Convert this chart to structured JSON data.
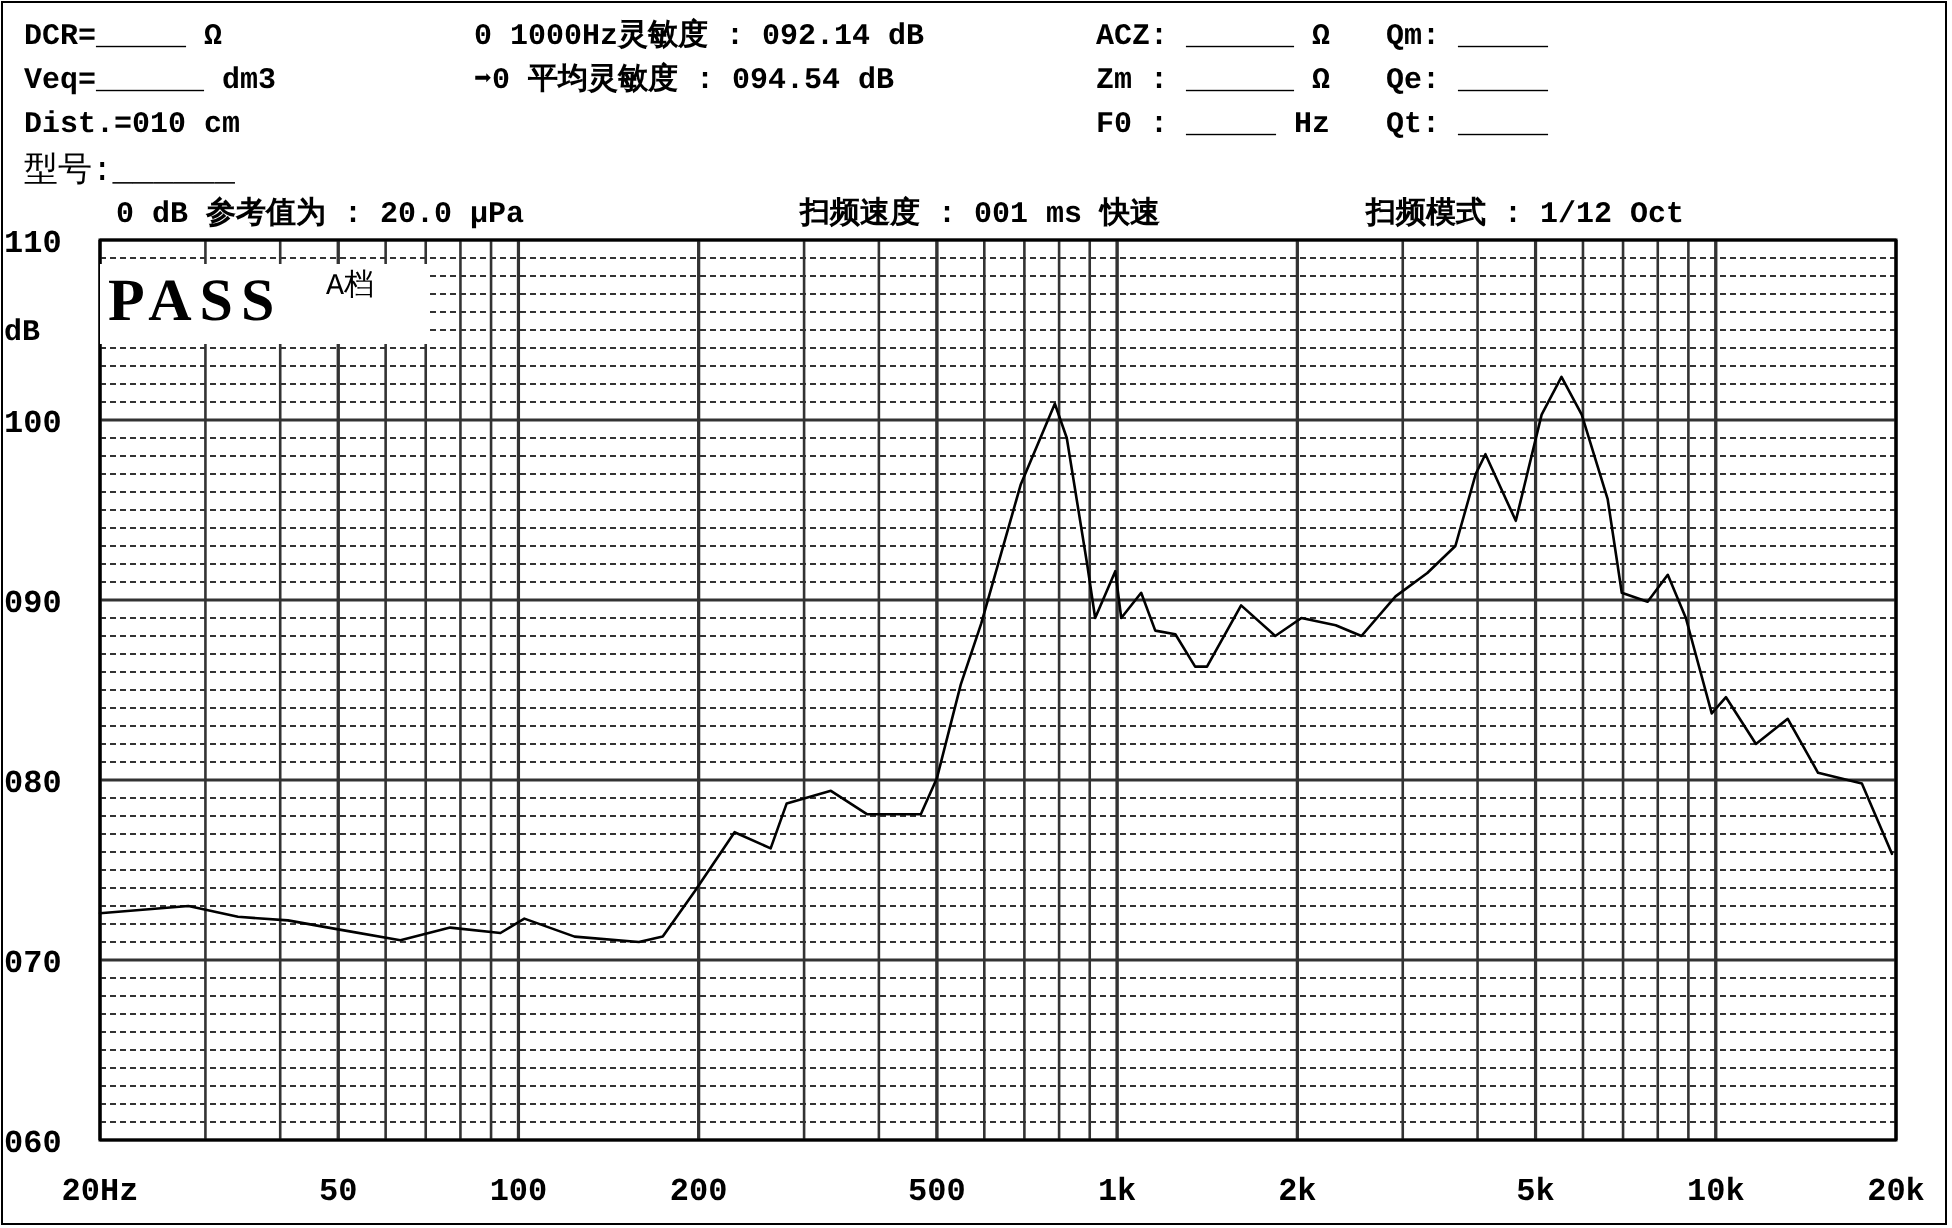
{
  "chart_data": {
    "type": "line",
    "ylabel": "dB",
    "annotations": [
      "DCR=_____ Ω",
      "Veq=______ dm3",
      "Dist.=010 cm",
      "型号:______",
      "0 1000Hz灵敏度 : 092.14 dB",
      "➡0 平均灵敏度 : 094.54 dB",
      "ACZ: ______ Ω",
      "Zm : ______ Ω",
      "F0 : _____ Hz",
      "Qm: _____",
      "Qe: _____",
      "Qt: _____",
      "0 dB 参考值为 : 20.0 μPa",
      "扫频速度 : 001 ms 快速",
      "扫频模式 : 1/12 Oct",
      "PASS",
      "A档"
    ],
    "log": "x",
    "grid": true,
    "line_style": "solid",
    "xlim": [
      20,
      20000
    ],
    "ylim": [
      60,
      110
    ],
    "xticks": [
      {
        "value": 20,
        "label": "20Hz"
      },
      50,
      100,
      200,
      500,
      {
        "value": 1000,
        "label": "1k"
      },
      {
        "value": 2000,
        "label": "2k"
      },
      {
        "value": 5000,
        "label": "5k"
      },
      {
        "value": 10000,
        "label": "10k"
      },
      {
        "value": 20000,
        "label": "20k"
      }
    ],
    "yticks": [
      {
        "value": 60,
        "label": "060"
      },
      {
        "value": 70,
        "label": "070"
      },
      {
        "value": 80,
        "label": "080"
      },
      {
        "value": 90,
        "label": "090"
      },
      100,
      110
    ],
    "series": [
      {
        "color": "#000000",
        "x": [
          20,
          28.1,
          34,
          41.2,
          50,
          63.5,
          76.9,
          93.3,
          102.3,
          124.1,
          158.9,
          174.2,
          196.9,
          229.6,
          263.8,
          280.6,
          332.6,
          382,
          470,
          500,
          548,
          593,
          690,
          787,
          824,
          891,
          919,
          993,
          1016,
          1097,
          1158,
          1251,
          1350,
          1413,
          1611,
          1837,
          2032,
          2318,
          2559,
          2918,
          3297,
          3673,
          3972,
          4123,
          4634,
          5118,
          5524,
          5971,
          6598,
          6966,
          7693,
          8314,
          8913,
          9845,
          10400,
          11670,
          13190,
          14820,
          17540,
          19690
        ],
        "values": [
          72.6,
          73.0,
          72.4,
          72.2,
          71.7,
          71.1,
          71.8,
          71.5,
          72.3,
          71.3,
          71.0,
          71.3,
          73.8,
          77.1,
          76.2,
          78.7,
          79.4,
          78.1,
          78.1,
          80.1,
          85.3,
          88.7,
          96.4,
          100.9,
          99.0,
          92.0,
          89.0,
          91.6,
          89.0,
          90.4,
          88.3,
          88.1,
          86.3,
          86.3,
          89.7,
          88.0,
          89.0,
          88.6,
          88.0,
          90.2,
          91.5,
          93.0,
          97.0,
          98.1,
          94.4,
          100.3,
          102.4,
          100.3,
          95.6,
          90.4,
          89.9,
          91.4,
          89.0,
          83.7,
          84.6,
          82.0,
          83.4,
          80.4,
          79.8,
          75.9
        ]
      }
    ]
  }
}
